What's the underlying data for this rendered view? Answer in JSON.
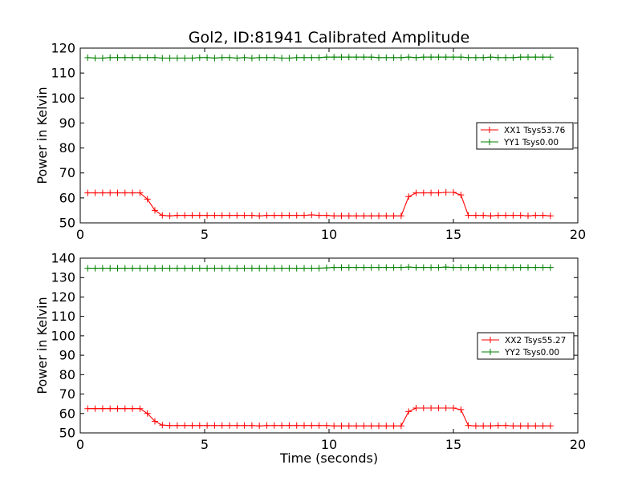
{
  "figure": {
    "title": "Gol2, ID:81941 Calibrated Amplitude"
  },
  "chart_data": [
    {
      "type": "line",
      "title": "Gol2, ID:81941 Calibrated Amplitude",
      "xlabel": "",
      "ylabel": "Power in Kelvin",
      "xlim": [
        0,
        20
      ],
      "ylim": [
        50,
        120
      ],
      "xticks": [
        "0",
        "5",
        "10",
        "15",
        "20"
      ],
      "yticks": [
        "50",
        "60",
        "70",
        "80",
        "90",
        "100",
        "110",
        "120"
      ],
      "grid": false,
      "legend_position": "right",
      "x": [
        0.3,
        0.6,
        0.9,
        1.2,
        1.5,
        1.8,
        2.1,
        2.4,
        2.7,
        3.0,
        3.3,
        3.6,
        3.9,
        4.2,
        4.5,
        4.8,
        5.1,
        5.4,
        5.7,
        6.0,
        6.3,
        6.6,
        6.9,
        7.2,
        7.5,
        7.8,
        8.1,
        8.4,
        8.7,
        9.0,
        9.3,
        9.6,
        9.9,
        10.2,
        10.5,
        10.8,
        11.1,
        11.4,
        11.7,
        12.0,
        12.3,
        12.6,
        12.9,
        13.2,
        13.5,
        13.8,
        14.1,
        14.4,
        14.7,
        15.0,
        15.3,
        15.6,
        15.9,
        16.2,
        16.5,
        16.8,
        17.1,
        17.4,
        17.7,
        18.0,
        18.3,
        18.6,
        18.9
      ],
      "series": [
        {
          "name": "XX1 Tsys53.76",
          "color": "#ff0000",
          "values": [
            62.0,
            62.0,
            62.0,
            62.0,
            62.0,
            62.0,
            62.0,
            62.0,
            59.5,
            55.0,
            53.0,
            52.8,
            53.0,
            53.0,
            53.0,
            53.0,
            53.0,
            53.0,
            53.0,
            53.0,
            53.0,
            53.0,
            53.0,
            52.8,
            53.0,
            53.0,
            53.0,
            53.0,
            53.0,
            53.0,
            53.2,
            53.0,
            53.0,
            52.8,
            52.8,
            52.8,
            52.8,
            52.8,
            52.8,
            52.8,
            52.8,
            52.8,
            52.8,
            60.5,
            62.0,
            62.0,
            62.0,
            62.0,
            62.2,
            62.2,
            61.2,
            53.0,
            53.0,
            53.0,
            52.8,
            53.0,
            53.0,
            53.0,
            53.0,
            52.8,
            53.0,
            53.0,
            52.8
          ]
        },
        {
          "name": "YY1 Tsys0.00",
          "color": "#008000",
          "values": [
            116.2,
            116.0,
            116.0,
            116.2,
            116.2,
            116.2,
            116.2,
            116.2,
            116.2,
            116.2,
            116.0,
            116.0,
            116.0,
            116.0,
            116.0,
            116.2,
            116.2,
            116.0,
            116.2,
            116.2,
            116.0,
            116.2,
            116.0,
            116.2,
            116.2,
            116.2,
            116.0,
            116.0,
            116.2,
            116.2,
            116.2,
            116.2,
            116.4,
            116.4,
            116.4,
            116.4,
            116.4,
            116.4,
            116.4,
            116.2,
            116.2,
            116.2,
            116.2,
            116.4,
            116.2,
            116.4,
            116.4,
            116.4,
            116.4,
            116.4,
            116.4,
            116.2,
            116.2,
            116.2,
            116.4,
            116.2,
            116.2,
            116.2,
            116.4,
            116.4,
            116.4,
            116.4,
            116.4
          ]
        }
      ]
    },
    {
      "type": "line",
      "title": "",
      "xlabel": "Time (seconds)",
      "ylabel": "Power in Kelvin",
      "xlim": [
        0,
        20
      ],
      "ylim": [
        50,
        140
      ],
      "xticks": [
        "0",
        "5",
        "10",
        "15",
        "20"
      ],
      "yticks": [
        "50",
        "60",
        "70",
        "80",
        "90",
        "100",
        "110",
        "120",
        "130",
        "140"
      ],
      "grid": false,
      "legend_position": "right",
      "x": [
        0.3,
        0.6,
        0.9,
        1.2,
        1.5,
        1.8,
        2.1,
        2.4,
        2.7,
        3.0,
        3.3,
        3.6,
        3.9,
        4.2,
        4.5,
        4.8,
        5.1,
        5.4,
        5.7,
        6.0,
        6.3,
        6.6,
        6.9,
        7.2,
        7.5,
        7.8,
        8.1,
        8.4,
        8.7,
        9.0,
        9.3,
        9.6,
        9.9,
        10.2,
        10.5,
        10.8,
        11.1,
        11.4,
        11.7,
        12.0,
        12.3,
        12.6,
        12.9,
        13.2,
        13.5,
        13.8,
        14.1,
        14.4,
        14.7,
        15.0,
        15.3,
        15.6,
        15.9,
        16.2,
        16.5,
        16.8,
        17.1,
        17.4,
        17.7,
        18.0,
        18.3,
        18.6,
        18.9
      ],
      "series": [
        {
          "name": "XX2 Tsys55.27",
          "color": "#ff0000",
          "values": [
            62.5,
            62.5,
            62.5,
            62.5,
            62.5,
            62.5,
            62.5,
            62.5,
            60.0,
            56.0,
            54.0,
            53.8,
            53.8,
            53.8,
            53.8,
            53.8,
            53.8,
            53.8,
            53.8,
            53.8,
            53.8,
            53.8,
            53.8,
            53.6,
            53.8,
            53.8,
            53.8,
            53.8,
            53.8,
            53.8,
            53.8,
            53.8,
            53.8,
            53.6,
            53.6,
            53.6,
            53.6,
            53.6,
            53.6,
            53.6,
            53.6,
            53.6,
            53.6,
            61.0,
            62.8,
            62.8,
            62.8,
            62.8,
            62.8,
            62.8,
            62.0,
            53.8,
            53.6,
            53.6,
            53.6,
            53.8,
            53.8,
            53.6,
            53.6,
            53.6,
            53.6,
            53.6,
            53.6
          ]
        },
        {
          "name": "YY2 Tsys0.00",
          "color": "#008000",
          "values": [
            134.8,
            134.8,
            134.8,
            134.8,
            134.8,
            134.8,
            134.8,
            134.8,
            134.8,
            134.8,
            134.8,
            134.8,
            134.8,
            134.8,
            134.8,
            134.8,
            134.8,
            134.8,
            134.8,
            134.8,
            134.8,
            134.8,
            134.8,
            134.8,
            134.8,
            134.8,
            134.8,
            134.8,
            134.8,
            134.8,
            134.8,
            134.8,
            135.0,
            135.2,
            135.2,
            135.2,
            135.2,
            135.2,
            135.2,
            135.2,
            135.2,
            135.2,
            135.2,
            135.4,
            135.2,
            135.2,
            135.2,
            135.2,
            135.4,
            135.2,
            135.2,
            135.2,
            135.2,
            135.2,
            135.2,
            135.2,
            135.2,
            135.2,
            135.2,
            135.2,
            135.2,
            135.2,
            135.2
          ]
        }
      ]
    }
  ]
}
